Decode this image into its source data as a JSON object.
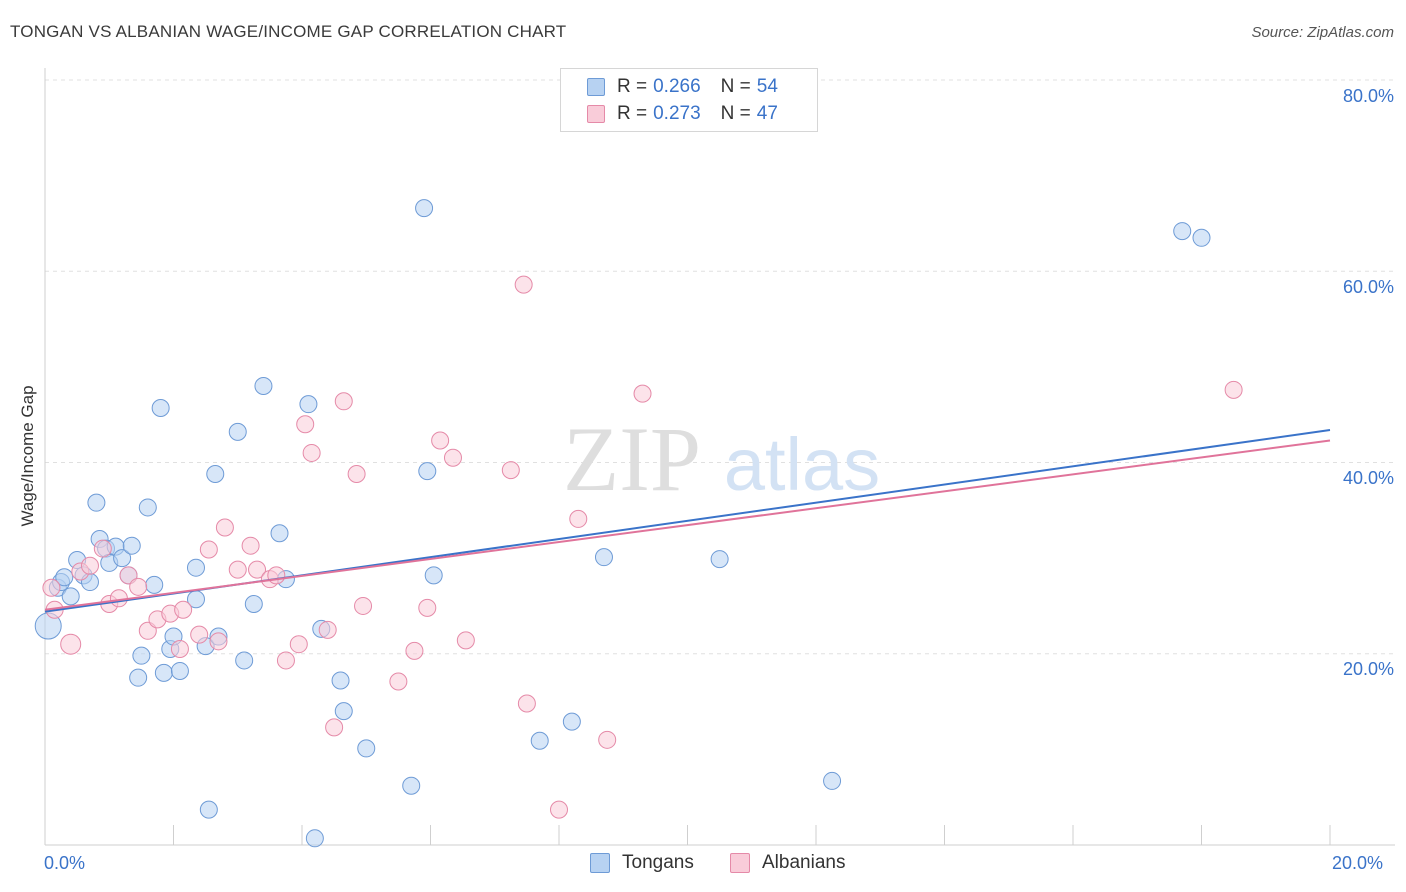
{
  "title": "TONGAN VS ALBANIAN WAGE/INCOME GAP CORRELATION CHART",
  "source": "Source: ZipAtlas.com",
  "watermark": {
    "zip": "ZIP",
    "atlas": "atlas"
  },
  "legend": {
    "rows": [
      {
        "r_label": "R =",
        "r_value": "0.266",
        "n_label": "N =",
        "n_value": "54"
      },
      {
        "r_label": "R =",
        "r_value": "0.273",
        "n_label": "N =",
        "n_value": "47"
      }
    ]
  },
  "bottom_legend": {
    "series1": "Tongans",
    "series2": "Albanians"
  },
  "colors": {
    "blue_fill": "#b7d2f2",
    "blue_stroke": "#6e9bd6",
    "blue_line": "#3a73c9",
    "pink_fill": "#f9ccd9",
    "pink_stroke": "#e58aa8",
    "pink_line": "#e0739a",
    "tick_text": "#3a73c9"
  },
  "chart_data": {
    "type": "scatter",
    "title": "TONGAN VS ALBANIAN WAGE/INCOME GAP CORRELATION CHART",
    "xlabel": "",
    "ylabel": "Wage/Income Gap",
    "xlim": [
      0,
      20
    ],
    "ylim": [
      0,
      80
    ],
    "x_tick_labels": [
      "0.0%",
      "20.0%"
    ],
    "y_tick_labels": [
      "20.0%",
      "40.0%",
      "60.0%",
      "80.0%"
    ],
    "y_ticks": [
      20,
      40,
      60,
      80
    ],
    "grid": true,
    "legend_position": "top-center",
    "series": [
      {
        "name": "Tongans",
        "color": "#b7d2f2",
        "trend": {
          "x": [
            0,
            20
          ],
          "y": [
            24.4,
            43.4
          ]
        },
        "points": [
          [
            0.05,
            22.9
          ],
          [
            0.2,
            26.9
          ],
          [
            0.25,
            27.5
          ],
          [
            0.3,
            28.0
          ],
          [
            0.4,
            26.0
          ],
          [
            0.5,
            29.8
          ],
          [
            0.6,
            28.2
          ],
          [
            0.7,
            27.5
          ],
          [
            0.8,
            35.8
          ],
          [
            0.85,
            32.0
          ],
          [
            0.95,
            31.0
          ],
          [
            1.0,
            29.5
          ],
          [
            1.1,
            31.2
          ],
          [
            1.2,
            30.0
          ],
          [
            1.3,
            28.2
          ],
          [
            1.35,
            31.3
          ],
          [
            1.45,
            17.5
          ],
          [
            1.5,
            19.8
          ],
          [
            1.6,
            35.3
          ],
          [
            1.7,
            27.2
          ],
          [
            1.8,
            45.7
          ],
          [
            1.85,
            18.0
          ],
          [
            1.95,
            20.5
          ],
          [
            2.0,
            21.8
          ],
          [
            2.1,
            18.2
          ],
          [
            2.35,
            25.7
          ],
          [
            2.35,
            29.0
          ],
          [
            2.5,
            20.8
          ],
          [
            2.55,
            3.7
          ],
          [
            2.65,
            38.8
          ],
          [
            2.7,
            21.8
          ],
          [
            3.0,
            43.2
          ],
          [
            3.1,
            19.3
          ],
          [
            3.25,
            25.2
          ],
          [
            3.4,
            48.0
          ],
          [
            3.65,
            32.6
          ],
          [
            3.75,
            27.8
          ],
          [
            4.1,
            46.1
          ],
          [
            4.2,
            0.7
          ],
          [
            4.3,
            22.6
          ],
          [
            4.6,
            17.2
          ],
          [
            4.65,
            14.0
          ],
          [
            5.0,
            10.1
          ],
          [
            5.7,
            6.2
          ],
          [
            5.9,
            66.6
          ],
          [
            5.95,
            39.1
          ],
          [
            6.05,
            28.2
          ],
          [
            7.7,
            10.9
          ],
          [
            8.2,
            12.9
          ],
          [
            8.7,
            30.1
          ],
          [
            10.5,
            29.9
          ],
          [
            12.25,
            6.7
          ],
          [
            17.7,
            64.2
          ],
          [
            18.0,
            63.5
          ]
        ]
      },
      {
        "name": "Albanians",
        "color": "#f9ccd9",
        "trend": {
          "x": [
            0,
            20
          ],
          "y": [
            24.6,
            42.3
          ]
        },
        "points": [
          [
            0.1,
            26.9
          ],
          [
            0.15,
            24.6
          ],
          [
            0.4,
            21.0
          ],
          [
            0.55,
            28.6
          ],
          [
            0.7,
            29.2
          ],
          [
            0.9,
            31.0
          ],
          [
            1.0,
            25.2
          ],
          [
            1.15,
            25.8
          ],
          [
            1.3,
            28.2
          ],
          [
            1.45,
            27.0
          ],
          [
            1.6,
            22.4
          ],
          [
            1.75,
            23.6
          ],
          [
            1.95,
            24.2
          ],
          [
            2.15,
            24.6
          ],
          [
            2.1,
            20.5
          ],
          [
            2.4,
            22.0
          ],
          [
            2.55,
            30.9
          ],
          [
            2.7,
            21.3
          ],
          [
            2.8,
            33.2
          ],
          [
            3.0,
            28.8
          ],
          [
            3.2,
            31.3
          ],
          [
            3.3,
            28.8
          ],
          [
            3.5,
            27.8
          ],
          [
            3.6,
            28.2
          ],
          [
            3.75,
            19.3
          ],
          [
            3.95,
            21.0
          ],
          [
            4.05,
            44.0
          ],
          [
            4.15,
            41.0
          ],
          [
            4.4,
            22.5
          ],
          [
            4.5,
            12.3
          ],
          [
            4.65,
            46.4
          ],
          [
            4.85,
            38.8
          ],
          [
            4.95,
            25.0
          ],
          [
            5.5,
            17.1
          ],
          [
            5.75,
            20.3
          ],
          [
            5.95,
            24.8
          ],
          [
            6.15,
            42.3
          ],
          [
            6.35,
            40.5
          ],
          [
            6.55,
            21.4
          ],
          [
            7.25,
            39.2
          ],
          [
            7.45,
            58.6
          ],
          [
            7.5,
            14.8
          ],
          [
            8.0,
            3.7
          ],
          [
            8.3,
            34.1
          ],
          [
            8.75,
            11.0
          ],
          [
            9.3,
            47.2
          ],
          [
            18.5,
            47.6
          ]
        ]
      }
    ]
  }
}
